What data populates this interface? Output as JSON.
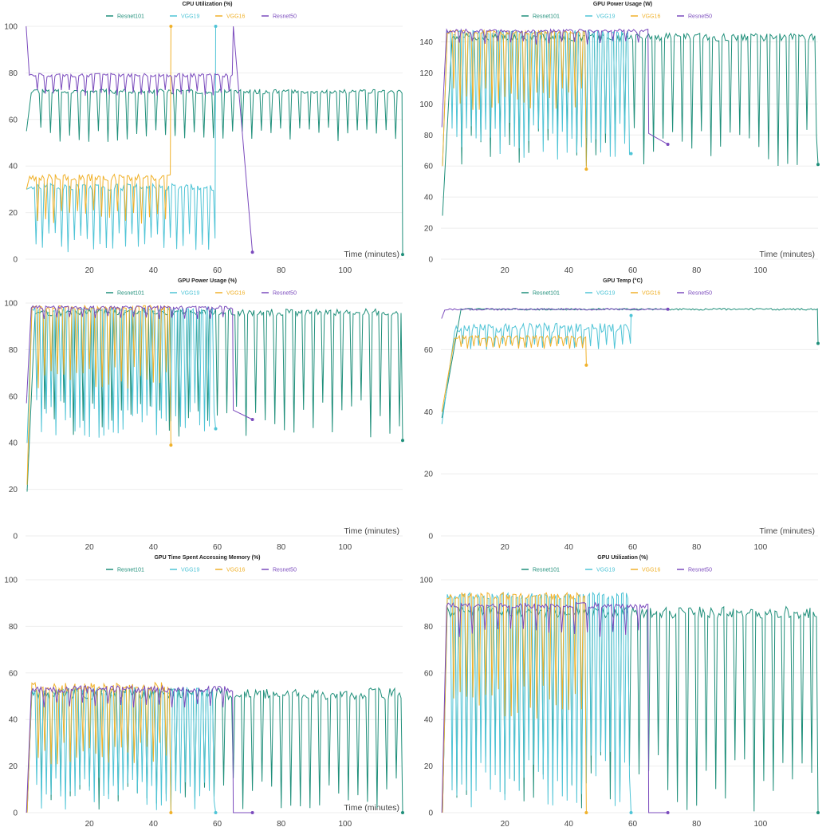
{
  "colors": {
    "Resnet101": "#1f8f7a",
    "VGG19": "#4fc4d6",
    "VGG16": "#f0b12a",
    "Resnet50": "#7b4bbd",
    "grid": "#eeeeee",
    "text": "#444444"
  },
  "chart_data": [
    {
      "type": "line",
      "title": "CPU Utilization (%)",
      "xlabel": "Time (minutes)",
      "ylabel": "",
      "xlim": [
        0,
        118
      ],
      "ylim": [
        0,
        100
      ],
      "xticks": [
        20,
        40,
        60,
        80,
        100
      ],
      "yticks": [
        0,
        20,
        40,
        60,
        80,
        100
      ],
      "grid": true,
      "legend_position": "top",
      "series": [
        {
          "name": "Resnet101",
          "color": "#1f8f7a",
          "base": 72,
          "noise": 1.0,
          "spike_every": 6,
          "spike_to": 50,
          "start": 0.3,
          "start_value": 55,
          "rise": 1.5,
          "end": 118,
          "end_value": 2,
          "final_end": 118,
          "tail_value": 2
        },
        {
          "name": "VGG19",
          "color": "#4fc4d6",
          "base": 31,
          "noise": 1.5,
          "spike_every": 4,
          "spike_to": 3,
          "start": 0.3,
          "start_value": 30,
          "rise": 1.0,
          "end": 59.5,
          "end_value": 100,
          "final_end": 59.5,
          "tail_value": 100
        },
        {
          "name": "VGG16",
          "color": "#f0b12a",
          "base": 35,
          "noise": 1.5,
          "spike_every": 5,
          "spike_to": 15,
          "start": 0.3,
          "start_value": 30,
          "rise": 1.0,
          "end": 45.5,
          "end_value": 100,
          "final_end": 45.5,
          "tail_value": 100
        },
        {
          "name": "Resnet50",
          "color": "#7b4bbd",
          "base": 79,
          "noise": 0.8,
          "spike_every": 5,
          "spike_to": 70,
          "start": 0.2,
          "start_value": 100,
          "rise": 1.0,
          "end": 65,
          "end_value": 100,
          "final_end": 71,
          "tail_value": 3
        }
      ]
    },
    {
      "type": "line",
      "title": "GPU Power Usage (W)",
      "xlabel": "Time (minutes)",
      "ylabel": "",
      "xlim": [
        0,
        118
      ],
      "ylim": [
        0,
        150
      ],
      "xticks": [
        20,
        40,
        60,
        80,
        100
      ],
      "yticks": [
        0,
        20,
        40,
        60,
        80,
        100,
        120,
        140
      ],
      "grid": true,
      "legend_position": "top",
      "series": [
        {
          "name": "Resnet101",
          "color": "#1f8f7a",
          "base": 143,
          "noise": 2.5,
          "spike_every": 6,
          "spike_to": 60,
          "start": 0.5,
          "start_value": 28,
          "rise": 3.0,
          "end": 118,
          "end_value": 61,
          "final_end": 118,
          "tail_value": 61
        },
        {
          "name": "VGG19",
          "color": "#4fc4d6",
          "base": 146,
          "noise": 1.5,
          "spike_every": 3,
          "spike_to": 63,
          "start": 0.5,
          "start_value": 60,
          "rise": 1.5,
          "end": 59.5,
          "end_value": 68,
          "final_end": 59.5,
          "tail_value": 68
        },
        {
          "name": "VGG16",
          "color": "#f0b12a",
          "base": 146,
          "noise": 1.5,
          "spike_every": 4,
          "spike_to": 95,
          "start": 0.5,
          "start_value": 60,
          "rise": 1.5,
          "end": 45.5,
          "end_value": 58,
          "final_end": 45.5,
          "tail_value": 58
        },
        {
          "name": "Resnet50",
          "color": "#7b4bbd",
          "base": 147,
          "noise": 1.2,
          "spike_every": 8,
          "spike_to": 138,
          "start": 0.3,
          "start_value": 85,
          "rise": 1.5,
          "end": 65,
          "end_value": 81,
          "final_end": 71,
          "tail_value": 74
        }
      ]
    },
    {
      "type": "line",
      "title": "GPU Power Usage (%)",
      "xlabel": "Time (minutes)",
      "ylabel": "",
      "xlim": [
        0,
        118
      ],
      "ylim": [
        0,
        100
      ],
      "xticks": [
        20,
        40,
        60,
        80,
        100
      ],
      "yticks": [
        0,
        20,
        40,
        60,
        80,
        100
      ],
      "grid": true,
      "legend_position": "top",
      "series": [
        {
          "name": "Resnet101",
          "color": "#1f8f7a",
          "base": 96,
          "noise": 1.5,
          "spike_every": 6,
          "spike_to": 42,
          "start": 0.5,
          "start_value": 19,
          "rise": 2.5,
          "end": 118,
          "end_value": 41,
          "final_end": 118,
          "tail_value": 41
        },
        {
          "name": "VGG19",
          "color": "#4fc4d6",
          "base": 97,
          "noise": 1.2,
          "spike_every": 3,
          "spike_to": 42,
          "start": 0.5,
          "start_value": 40,
          "rise": 1.5,
          "end": 59.5,
          "end_value": 46,
          "final_end": 59.5,
          "tail_value": 46
        },
        {
          "name": "VGG16",
          "color": "#f0b12a",
          "base": 98,
          "noise": 1.0,
          "spike_every": 4,
          "spike_to": 63,
          "start": 0.5,
          "start_value": 22,
          "rise": 1.5,
          "end": 45.5,
          "end_value": 39,
          "final_end": 45.5,
          "tail_value": 39
        },
        {
          "name": "Resnet50",
          "color": "#7b4bbd",
          "base": 98,
          "noise": 0.8,
          "spike_every": 8,
          "spike_to": 93,
          "start": 0.3,
          "start_value": 57,
          "rise": 1.5,
          "end": 65,
          "end_value": 54,
          "final_end": 71,
          "tail_value": 50
        }
      ]
    },
    {
      "type": "line",
      "title": "GPU Temp (°C)",
      "xlabel": "Time (minutes)",
      "ylabel": "",
      "xlim": [
        0,
        118
      ],
      "ylim": [
        0,
        75
      ],
      "xticks": [
        20,
        40,
        60,
        80,
        100
      ],
      "yticks": [
        0,
        20,
        40,
        60
      ],
      "grid": true,
      "legend_position": "top",
      "series": [
        {
          "name": "Resnet101",
          "color": "#1f8f7a",
          "base": 73,
          "noise": 0.3,
          "spike_every": 0,
          "spike_to": 73,
          "start": 0.3,
          "start_value": 38,
          "rise": 6.0,
          "end": 118,
          "end_value": 62,
          "final_end": 118,
          "tail_value": 62
        },
        {
          "name": "VGG19",
          "color": "#4fc4d6",
          "base": 67,
          "noise": 1.5,
          "spike_every": 5,
          "spike_to": 60,
          "start": 0.3,
          "start_value": 36,
          "rise": 4.0,
          "end": 59.5,
          "end_value": 71,
          "final_end": 59.5,
          "tail_value": 71
        },
        {
          "name": "VGG16",
          "color": "#f0b12a",
          "base": 64,
          "noise": 0.5,
          "spike_every": 4,
          "spike_to": 60,
          "start": 0.3,
          "start_value": 40,
          "rise": 4.0,
          "end": 45.5,
          "end_value": 55,
          "final_end": 45.5,
          "tail_value": 55
        },
        {
          "name": "Resnet50",
          "color": "#7b4bbd",
          "base": 73,
          "noise": 0.3,
          "spike_every": 0,
          "spike_to": 73,
          "start": 0.2,
          "start_value": 70,
          "rise": 1.0,
          "end": 65,
          "end_value": 73,
          "final_end": 71,
          "tail_value": 73
        }
      ]
    },
    {
      "type": "line",
      "title": "GPU Time Spent Accessing Memory (%)",
      "xlabel": "Time (minutes)",
      "ylabel": "",
      "xlim": [
        0,
        118
      ],
      "ylim": [
        0,
        100
      ],
      "xticks": [
        20,
        40,
        60,
        80,
        100
      ],
      "yticks": [
        0,
        20,
        40,
        60,
        80,
        100
      ],
      "grid": true,
      "legend_position": "top",
      "series": [
        {
          "name": "Resnet101",
          "color": "#1f8f7a",
          "base": 51,
          "noise": 2.5,
          "spike_every": 6,
          "spike_to": 0,
          "start": 0.5,
          "start_value": 0,
          "rise": 1.5,
          "end": 118,
          "end_value": 0,
          "final_end": 118,
          "tail_value": 0
        },
        {
          "name": "VGG19",
          "color": "#4fc4d6",
          "base": 52,
          "noise": 2.0,
          "spike_every": 3,
          "spike_to": 0,
          "start": 0.5,
          "start_value": 0,
          "rise": 1.5,
          "end": 59.5,
          "end_value": 0,
          "final_end": 59.5,
          "tail_value": 0
        },
        {
          "name": "VGG16",
          "color": "#f0b12a",
          "base": 54,
          "noise": 2.0,
          "spike_every": 4,
          "spike_to": 20,
          "start": 0.5,
          "start_value": 0,
          "rise": 1.5,
          "end": 45.5,
          "end_value": 0,
          "final_end": 45.5,
          "tail_value": 0
        },
        {
          "name": "Resnet50",
          "color": "#7b4bbd",
          "base": 53,
          "noise": 1.5,
          "spike_every": 8,
          "spike_to": 45,
          "start": 0.3,
          "start_value": 0,
          "rise": 1.5,
          "end": 65,
          "end_value": 0,
          "final_end": 71,
          "tail_value": 0
        }
      ]
    },
    {
      "type": "line",
      "title": "GPU Utilization (%)",
      "xlabel": "",
      "ylabel": "",
      "xlim": [
        0,
        118
      ],
      "ylim": [
        0,
        100
      ],
      "xticks": [
        20,
        40,
        60,
        80,
        100
      ],
      "yticks": [
        0,
        20,
        40,
        60,
        80,
        100
      ],
      "grid": true,
      "legend_position": "top",
      "series": [
        {
          "name": "Resnet101",
          "color": "#1f8f7a",
          "base": 86,
          "noise": 2.5,
          "spike_every": 6,
          "spike_to": 0,
          "start": 0.5,
          "start_value": 0,
          "rise": 1.5,
          "end": 118,
          "end_value": 0,
          "final_end": 118,
          "tail_value": 0
        },
        {
          "name": "VGG19",
          "color": "#4fc4d6",
          "base": 93,
          "noise": 1.5,
          "spike_every": 3,
          "spike_to": 0,
          "start": 0.5,
          "start_value": 0,
          "rise": 1.5,
          "end": 59.5,
          "end_value": 0,
          "final_end": 59.5,
          "tail_value": 0
        },
        {
          "name": "VGG16",
          "color": "#f0b12a",
          "base": 93,
          "noise": 1.5,
          "spike_every": 4,
          "spike_to": 40,
          "start": 0.5,
          "start_value": 0,
          "rise": 1.5,
          "end": 45.5,
          "end_value": 0,
          "final_end": 45.5,
          "tail_value": 0
        },
        {
          "name": "Resnet50",
          "color": "#7b4bbd",
          "base": 89,
          "noise": 1.2,
          "spike_every": 8,
          "spike_to": 75,
          "start": 0.3,
          "start_value": 0,
          "rise": 1.5,
          "end": 65,
          "end_value": 0,
          "final_end": 71,
          "tail_value": 0
        }
      ]
    }
  ]
}
